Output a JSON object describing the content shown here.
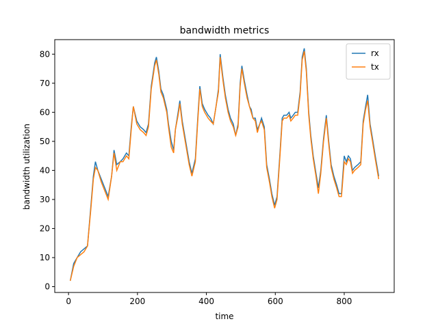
{
  "chart_data": {
    "type": "line",
    "title": "bandwidth metrics",
    "x_label": "time",
    "y_label": "bandwidth utilization",
    "x": [
      5,
      15,
      25,
      35,
      45,
      55,
      65,
      72,
      78,
      85,
      95,
      105,
      115,
      125,
      132,
      140,
      150,
      158,
      168,
      175,
      182,
      188,
      198,
      208,
      218,
      225,
      232,
      240,
      250,
      255,
      262,
      268,
      275,
      285,
      290,
      298,
      305,
      310,
      318,
      323,
      330,
      340,
      350,
      358,
      368,
      375,
      381,
      388,
      395,
      405,
      412,
      420,
      428,
      435,
      440,
      448,
      455,
      463,
      470,
      478,
      485,
      492,
      498,
      503,
      510,
      518,
      525,
      530,
      535,
      542,
      548,
      555,
      560,
      568,
      575,
      583,
      590,
      598,
      605,
      613,
      620,
      625,
      633,
      640,
      645,
      652,
      658,
      665,
      672,
      678,
      684,
      690,
      697,
      703,
      710,
      718,
      725,
      732,
      740,
      748,
      755,
      762,
      770,
      778,
      785,
      792,
      800,
      806,
      812,
      818,
      824,
      830,
      840,
      848,
      855,
      862,
      868,
      875,
      882,
      890,
      900
    ],
    "series": [
      {
        "name": "rx",
        "color": "#1f77b4",
        "values": [
          2,
          8,
          10,
          12,
          13,
          14,
          28,
          38,
          43,
          40,
          37,
          34,
          31,
          38,
          47,
          42,
          43,
          44,
          46,
          45,
          55,
          62,
          57,
          55,
          54,
          53,
          56,
          69,
          77,
          79,
          74,
          68,
          66,
          61,
          56,
          50,
          47,
          54,
          60,
          64,
          57,
          50,
          43,
          39,
          44,
          58,
          69,
          63,
          61,
          59,
          58,
          56,
          62,
          68,
          80,
          72,
          66,
          61,
          58,
          56,
          52,
          56,
          70,
          76,
          71,
          66,
          62,
          61,
          58,
          58,
          54,
          56,
          58,
          55,
          42,
          37,
          32,
          28,
          31,
          45,
          58,
          59,
          59,
          60,
          58,
          59,
          60,
          60,
          67,
          79,
          82,
          75,
          60,
          52,
          45,
          39,
          34,
          40,
          51,
          59,
          50,
          42,
          38,
          35,
          32,
          32,
          45,
          43,
          45,
          44,
          40,
          41,
          42,
          43,
          57,
          62,
          66,
          56,
          51,
          45,
          38
        ]
      },
      {
        "name": "tx",
        "color": "#ff7f0e",
        "values": [
          2,
          7,
          10,
          11,
          12,
          14,
          27,
          37,
          41,
          40,
          36,
          33,
          30,
          38,
          46,
          40,
          43,
          43,
          45,
          44,
          54,
          62,
          56,
          54,
          53,
          52,
          55,
          68,
          76,
          78,
          73,
          67,
          65,
          60,
          55,
          48,
          46,
          54,
          59,
          63,
          56,
          49,
          42,
          38,
          43,
          57,
          68,
          62,
          60,
          58,
          57,
          56,
          62,
          67,
          79,
          71,
          65,
          60,
          57,
          55,
          52,
          55,
          69,
          75,
          70,
          65,
          62,
          60,
          58,
          57,
          53,
          56,
          57,
          54,
          41,
          36,
          31,
          27,
          30,
          44,
          57,
          58,
          58,
          59,
          57,
          58,
          59,
          59,
          66,
          78,
          81,
          74,
          59,
          51,
          44,
          38,
          32,
          39,
          50,
          58,
          49,
          41,
          37,
          34,
          31,
          31,
          43,
          42,
          44,
          43,
          39,
          40,
          41,
          42,
          56,
          61,
          64,
          55,
          50,
          44,
          37
        ]
      }
    ],
    "xlim": [
      -40,
      945
    ],
    "ylim": [
      -2,
      85
    ],
    "xticks": [
      0,
      200,
      400,
      600,
      800
    ],
    "yticks": [
      0,
      10,
      20,
      30,
      40,
      50,
      60,
      70,
      80
    ],
    "legend": "upper right"
  }
}
